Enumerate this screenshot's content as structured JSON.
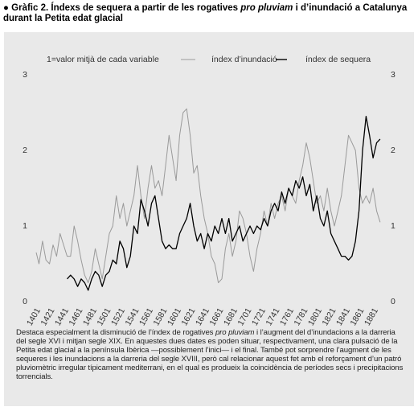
{
  "chart_data": {
    "type": "line",
    "title_parts": [
      "Gràfic 2. Índexs de sequera a partir de les rogatives ",
      "pro pluviam",
      " i d’inundació a Catalunya durant la Petita edat glacial"
    ],
    "annotation": "1=valor mitjà de cada variable",
    "note_parts": [
      "Destaca especialment la disminució de l’índex de rogatives ",
      "pro pluviam",
      " i l’augment del d’inundacions a la darreria del segle XVI i mitjan segle XIX. En aquestes dues dates es poden situar, respectivament, una clara pulsació de la Petita edat glacial a la península Ibèrica —possiblement l’inici— i el final. També pot sorprendre l’augment de les sequeres i les inundacions a la darreria del segle XVIII, però cal relacionar aquest fet amb el reforçament d’un patró pluviomètric irregular típicament mediterrani, en el qual es produeix la coincidència de períodes secs i precipitacions torrencials."
    ],
    "x": [
      1401,
      1405,
      1410,
      1415,
      1420,
      1425,
      1430,
      1435,
      1440,
      1445,
      1450,
      1455,
      1460,
      1465,
      1470,
      1475,
      1480,
      1485,
      1490,
      1495,
      1500,
      1505,
      1510,
      1515,
      1520,
      1525,
      1530,
      1535,
      1540,
      1545,
      1550,
      1555,
      1560,
      1565,
      1570,
      1575,
      1580,
      1585,
      1590,
      1595,
      1600,
      1605,
      1610,
      1615,
      1620,
      1625,
      1630,
      1635,
      1640,
      1645,
      1650,
      1655,
      1660,
      1665,
      1670,
      1675,
      1680,
      1685,
      1690,
      1695,
      1700,
      1705,
      1710,
      1715,
      1720,
      1725,
      1730,
      1735,
      1740,
      1745,
      1750,
      1755,
      1760,
      1765,
      1770,
      1775,
      1780,
      1785,
      1790,
      1795,
      1800,
      1805,
      1810,
      1815,
      1820,
      1825,
      1830,
      1835,
      1840,
      1845,
      1850,
      1855,
      1860,
      1865,
      1870,
      1875,
      1880,
      1885,
      1890
    ],
    "series": [
      {
        "name": "índex d’inundació",
        "color": "#9a9a9a",
        "values": [
          0.65,
          0.5,
          0.8,
          0.55,
          0.5,
          0.75,
          0.6,
          0.9,
          0.75,
          0.6,
          0.6,
          1.0,
          0.8,
          0.55,
          0.35,
          0.25,
          0.4,
          0.7,
          0.5,
          0.3,
          0.6,
          0.9,
          1.0,
          1.4,
          1.1,
          1.3,
          1.0,
          1.2,
          1.4,
          1.8,
          1.4,
          1.1,
          1.5,
          1.8,
          1.5,
          1.6,
          1.4,
          1.8,
          2.2,
          1.9,
          1.6,
          2.2,
          2.5,
          2.55,
          2.2,
          1.7,
          1.8,
          1.4,
          1.1,
          0.9,
          0.6,
          0.5,
          0.25,
          0.3,
          0.7,
          0.9,
          0.6,
          0.8,
          1.2,
          1.1,
          0.9,
          0.6,
          0.4,
          0.7,
          0.9,
          1.2,
          1.0,
          1.3,
          1.1,
          1.3,
          1.4,
          1.2,
          1.5,
          1.4,
          1.3,
          1.6,
          1.8,
          2.1,
          1.9,
          1.6,
          1.3,
          1.4,
          1.2,
          1.5,
          1.2,
          1.0,
          1.2,
          1.4,
          1.8,
          2.2,
          2.1,
          2.0,
          1.5,
          1.3,
          1.4,
          1.3,
          1.5,
          1.2,
          1.05
        ]
      },
      {
        "name": "índex de sequera",
        "color": "#000000",
        "values": [
          null,
          null,
          null,
          null,
          null,
          null,
          null,
          null,
          null,
          0.3,
          0.35,
          0.3,
          0.2,
          0.3,
          0.25,
          0.15,
          0.3,
          0.4,
          0.35,
          0.2,
          0.35,
          0.4,
          0.55,
          0.5,
          0.8,
          0.7,
          0.45,
          0.6,
          1.0,
          0.9,
          1.35,
          1.2,
          1.0,
          1.3,
          1.4,
          1.1,
          0.8,
          0.7,
          0.75,
          0.7,
          0.7,
          0.9,
          1.0,
          1.1,
          1.3,
          1.0,
          0.8,
          0.9,
          0.7,
          0.9,
          0.8,
          1.0,
          0.9,
          1.1,
          0.9,
          1.1,
          0.8,
          0.9,
          1.0,
          0.8,
          0.9,
          1.0,
          0.9,
          1.0,
          0.95,
          1.1,
          1.0,
          1.2,
          1.3,
          1.2,
          1.45,
          1.3,
          1.5,
          1.4,
          1.6,
          1.5,
          1.65,
          1.4,
          1.55,
          1.2,
          1.4,
          1.1,
          1.0,
          1.2,
          0.9,
          0.8,
          0.7,
          0.6,
          0.6,
          0.55,
          0.6,
          0.8,
          1.2,
          2.0,
          2.45,
          2.2,
          1.9,
          2.1,
          2.15
        ]
      }
    ],
    "xlim": [
      1396,
      1896
    ],
    "xticks": [
      1401,
      1421,
      1441,
      1461,
      1481,
      1501,
      1521,
      1541,
      1561,
      1581,
      1601,
      1621,
      1641,
      1661,
      1681,
      1701,
      1721,
      1741,
      1761,
      1781,
      1801,
      1821,
      1841,
      1861,
      1881
    ],
    "ylim": [
      0,
      3
    ],
    "yticks": [
      0,
      1,
      2,
      3
    ]
  }
}
